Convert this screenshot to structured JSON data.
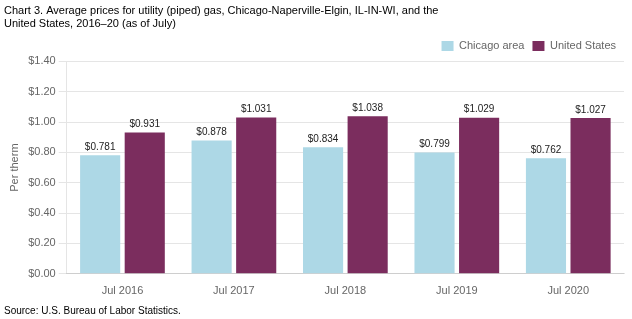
{
  "chart_data": {
    "type": "bar",
    "title": [
      "Chart 3. Average prices for utility (piped) gas, Chicago-Naperville-Elgin, IL-IN-WI, and the",
      "United States, 2016–20 (as of July)"
    ],
    "annotations": [
      "Source: U.S. Bureau of Labor Statistics."
    ],
    "y_label": "Per therm",
    "categories": [
      "Jul 2016",
      "Jul 2017",
      "Jul 2018",
      "Jul 2019",
      "Jul 2020"
    ],
    "series": [
      {
        "name": "Chicago area",
        "color": "#ADD8E6",
        "values": [
          0.781,
          0.878,
          0.834,
          0.799,
          0.762
        ],
        "value_labels": [
          "$0.781",
          "$0.878",
          "$0.834",
          "$0.799",
          "$0.762"
        ]
      },
      {
        "name": "United States",
        "color": "#7B2D5E",
        "values": [
          0.931,
          1.031,
          1.038,
          1.029,
          1.027
        ],
        "value_labels": [
          "$0.931",
          "$1.031",
          "$1.038",
          "$1.029",
          "$1.027"
        ]
      }
    ],
    "ylim": [
      0.0,
      1.4
    ],
    "yticks": [
      {
        "value": 0.0,
        "label": "$0.00"
      },
      {
        "value": 0.2,
        "label": "$0.20"
      },
      {
        "value": 0.4,
        "label": "$0.40"
      },
      {
        "value": 0.6,
        "label": "$0.60"
      },
      {
        "value": 0.8,
        "label": "$0.80"
      },
      {
        "value": 1.0,
        "label": "$1.00"
      },
      {
        "value": 1.2,
        "label": "$1.20"
      },
      {
        "value": 1.4,
        "label": "$1.40"
      }
    ],
    "grid": true,
    "legend": "upper right",
    "data_labels": true
  }
}
